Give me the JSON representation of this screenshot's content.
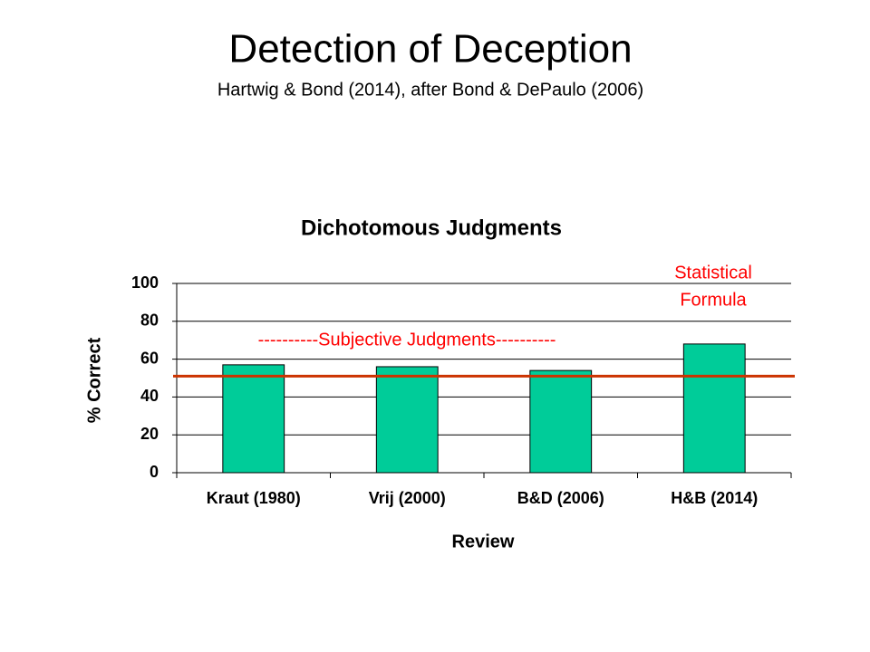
{
  "slide_title": "Detection of Deception",
  "slide_subtitle": "Hartwig & Bond (2014), after Bond & DePaulo (2006)",
  "chart_data": {
    "type": "bar",
    "title": "Dichotomous Judgments",
    "categories": [
      "Kraut (1980)",
      "Vrij (2000)",
      "B&D (2006)",
      "H&B (2014)"
    ],
    "values": [
      57,
      56,
      54,
      68
    ],
    "color": "#00cc99",
    "x_label": "Review",
    "y_label": "% Correct",
    "ylim": [
      0,
      100
    ],
    "yticks": [
      0,
      20,
      40,
      60,
      80,
      100
    ],
    "grid": true,
    "reference_line": {
      "value": 51,
      "color": "#cc3300"
    },
    "annotations": [
      {
        "lines": [
          "Statistical",
          "Formula"
        ],
        "color": "#ff0000"
      },
      {
        "lines": [
          "----------Subjective Judgments----------"
        ],
        "color": "#ff0000"
      }
    ]
  }
}
